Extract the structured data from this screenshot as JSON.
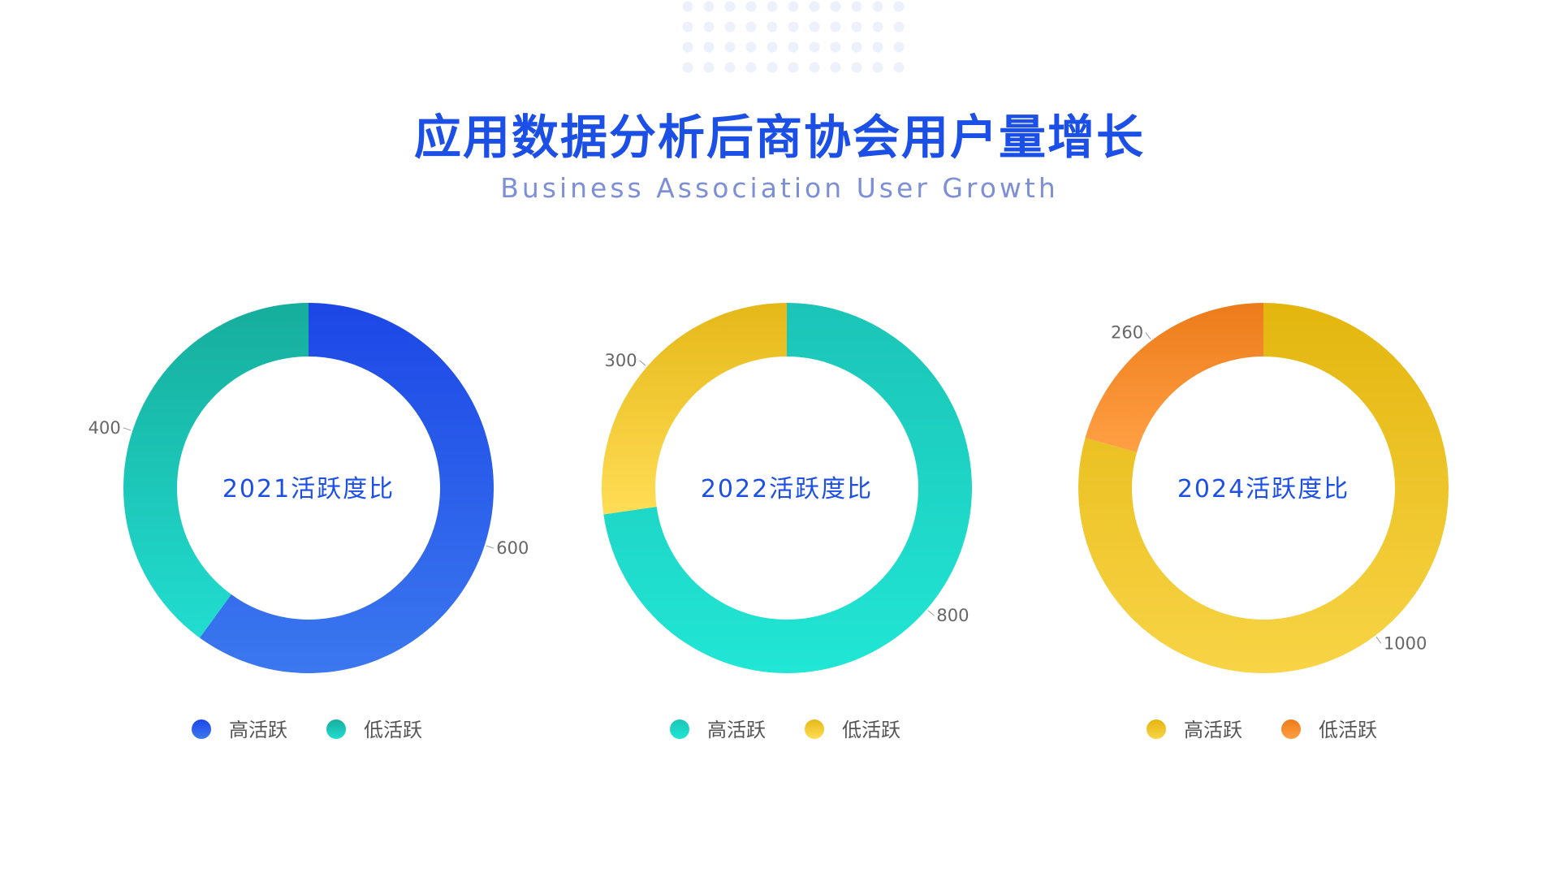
{
  "title": "应用数据分析后商协会用户量增长",
  "subtitle": "Business Association User Growth",
  "chart_data": [
    {
      "type": "pie",
      "center_label": "2021活跃度比",
      "categories": [
        "高活跃",
        "低活跃"
      ],
      "values": [
        600,
        400
      ],
      "colors": [
        [
          "#1c47e6",
          "#3b78ef"
        ],
        [
          "#16ad9c",
          "#21ddd0"
        ]
      ]
    },
    {
      "type": "pie",
      "center_label": "2022活跃度比",
      "categories": [
        "高活跃",
        "低活跃"
      ],
      "values": [
        800,
        300
      ],
      "colors": [
        [
          "#1bc4b6",
          "#21e6d5"
        ],
        [
          "#e5b818",
          "#ffdd55"
        ]
      ]
    },
    {
      "type": "pie",
      "center_label": "2024活跃度比",
      "categories": [
        "高活跃",
        "低活跃"
      ],
      "values": [
        1000,
        260
      ],
      "colors": [
        [
          "#e3b60e",
          "#f8d446"
        ],
        [
          "#ec7b1a",
          "#ffa044"
        ]
      ]
    }
  ]
}
